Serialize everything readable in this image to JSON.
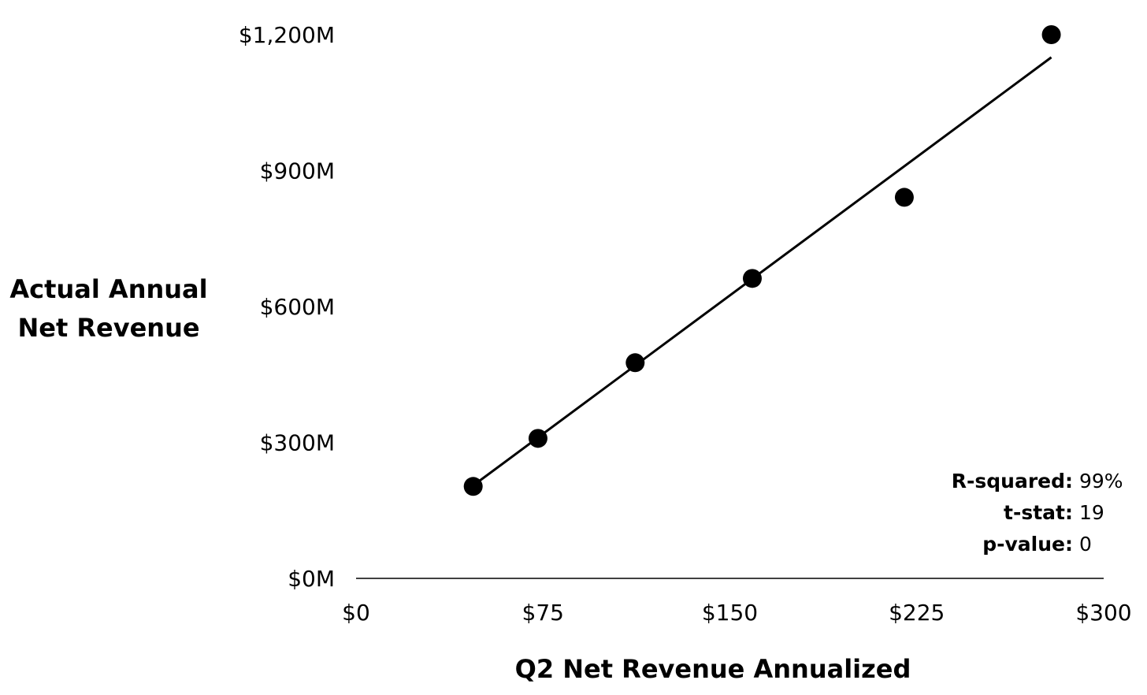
{
  "chart_data": {
    "type": "scatter",
    "xlabel": "Q2 Net Revenue Annualized",
    "ylabel_lines": [
      "Actual Annual",
      "Net Revenue"
    ],
    "xlim": [
      0,
      300
    ],
    "ylim": [
      0,
      1200
    ],
    "x_ticks": [
      {
        "value": 0,
        "label": "$0"
      },
      {
        "value": 75,
        "label": "$75"
      },
      {
        "value": 150,
        "label": "$150"
      },
      {
        "value": 225,
        "label": "$225"
      },
      {
        "value": 300,
        "label": "$300"
      }
    ],
    "y_ticks": [
      {
        "value": 0,
        "label": "$0M"
      },
      {
        "value": 300,
        "label": "$300M"
      },
      {
        "value": 600,
        "label": "$600M"
      },
      {
        "value": 900,
        "label": "$900M"
      },
      {
        "value": 1200,
        "label": "$1,200M"
      }
    ],
    "points": [
      {
        "x": 47,
        "y": 203
      },
      {
        "x": 73,
        "y": 309
      },
      {
        "x": 112,
        "y": 476
      },
      {
        "x": 159,
        "y": 662
      },
      {
        "x": 220,
        "y": 841
      },
      {
        "x": 279,
        "y": 1200
      }
    ],
    "trendline": {
      "x_start": 47,
      "y_start": 205,
      "x_end": 279,
      "y_end": 1150
    },
    "grid": false,
    "stats": [
      {
        "name": "R-squared:",
        "value": "99%"
      },
      {
        "name": "t-stat:",
        "value": "19"
      },
      {
        "name": "p-value:",
        "value": "0"
      }
    ],
    "colors": {
      "marker": "#000000",
      "line": "#000000",
      "axis": "#000000"
    }
  }
}
